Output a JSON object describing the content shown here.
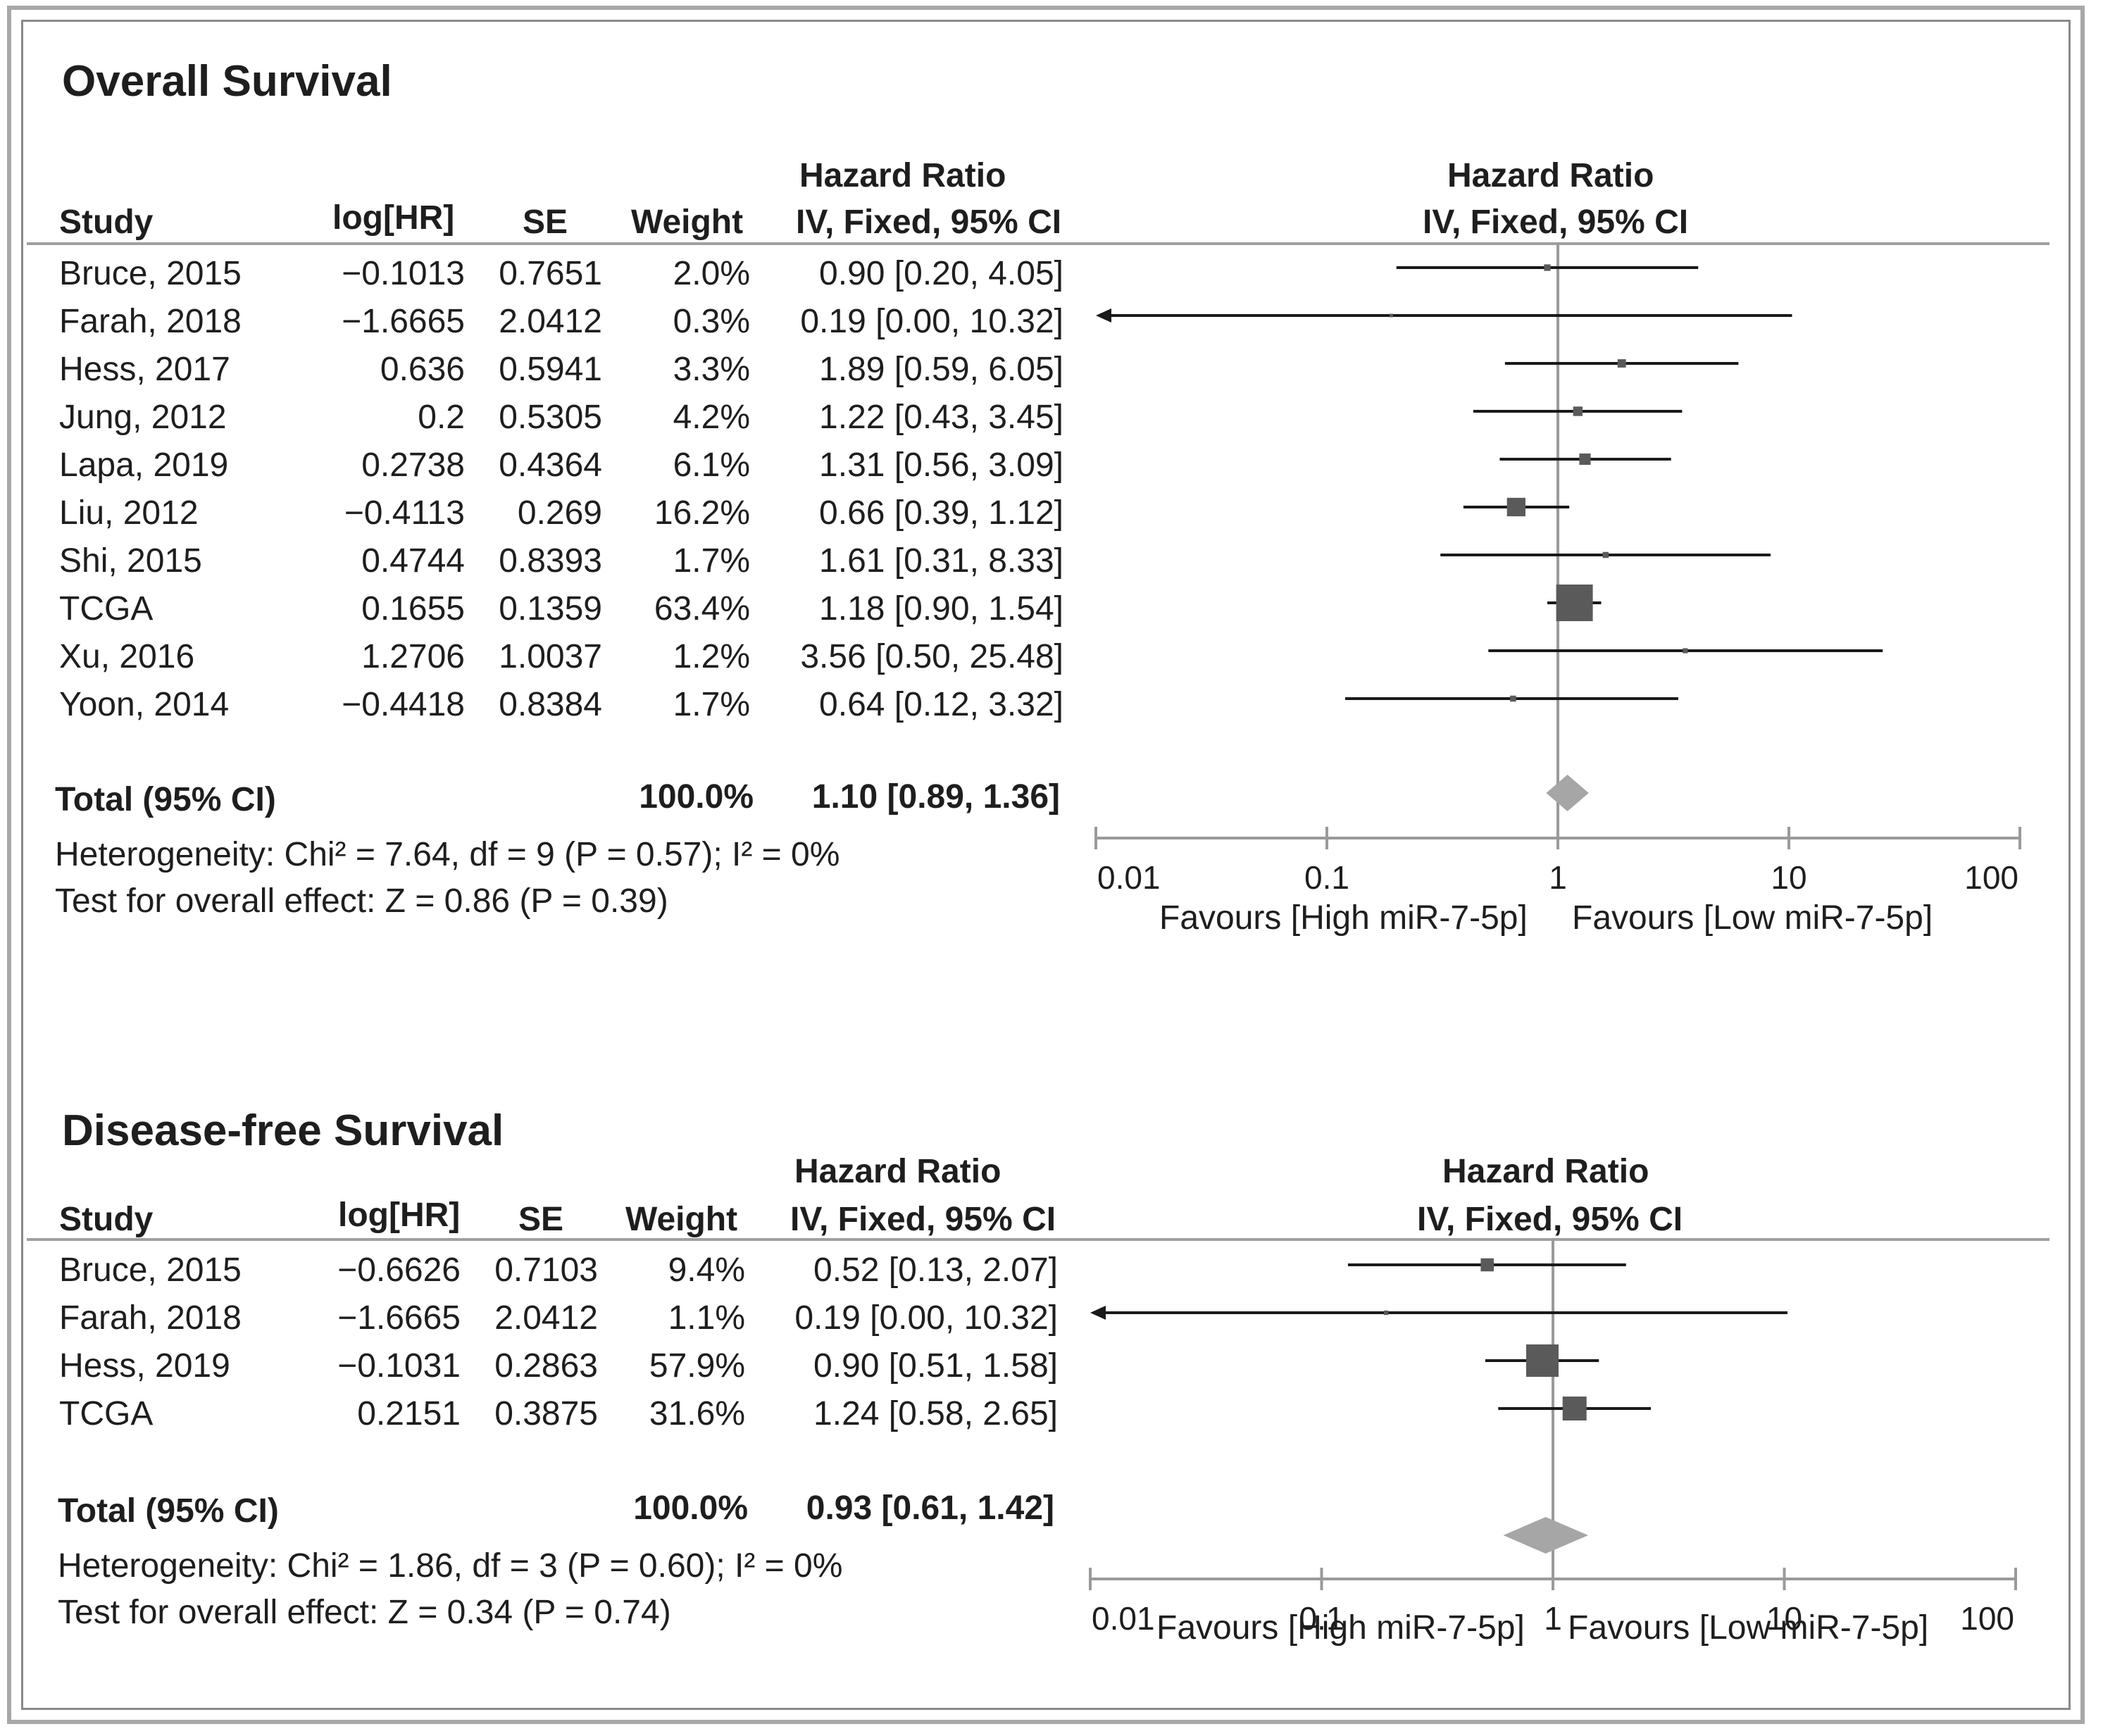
{
  "chart_data": [
    {
      "type": "forest",
      "title": "Overall Survival",
      "columns": {
        "study": "Study",
        "loghr": "log[HR]",
        "se": "SE",
        "weight": "Weight",
        "hr_top": "Hazard Ratio",
        "hr_bottom": "IV, Fixed, 95% CI",
        "plot_top": "Hazard Ratio",
        "plot_bottom": "IV, Fixed, 95% CI"
      },
      "studies": [
        {
          "study": "Bruce, 2015",
          "loghr": "−0.1013",
          "se": "0.7651",
          "weight": "2.0%",
          "ci_text": "0.90 [0.20, 4.05]",
          "hr": 0.9,
          "lo": 0.2,
          "hi": 4.05,
          "w": 2.0
        },
        {
          "study": "Farah, 2018",
          "loghr": "−1.6665",
          "se": "2.0412",
          "weight": "0.3%",
          "ci_text": "0.19 [0.00, 10.32]",
          "hr": 0.19,
          "lo": 0.0,
          "hi": 10.32,
          "w": 0.3
        },
        {
          "study": "Hess, 2017",
          "loghr": "0.636",
          "se": "0.5941",
          "weight": "3.3%",
          "ci_text": "1.89 [0.59, 6.05]",
          "hr": 1.89,
          "lo": 0.59,
          "hi": 6.05,
          "w": 3.3
        },
        {
          "study": "Jung, 2012",
          "loghr": "0.2",
          "se": "0.5305",
          "weight": "4.2%",
          "ci_text": "1.22 [0.43, 3.45]",
          "hr": 1.22,
          "lo": 0.43,
          "hi": 3.45,
          "w": 4.2
        },
        {
          "study": "Lapa, 2019",
          "loghr": "0.2738",
          "se": "0.4364",
          "weight": "6.1%",
          "ci_text": "1.31 [0.56, 3.09]",
          "hr": 1.31,
          "lo": 0.56,
          "hi": 3.09,
          "w": 6.1
        },
        {
          "study": "Liu, 2012",
          "loghr": "−0.4113",
          "se": "0.269",
          "weight": "16.2%",
          "ci_text": "0.66 [0.39, 1.12]",
          "hr": 0.66,
          "lo": 0.39,
          "hi": 1.12,
          "w": 16.2
        },
        {
          "study": "Shi, 2015",
          "loghr": "0.4744",
          "se": "0.8393",
          "weight": "1.7%",
          "ci_text": "1.61 [0.31, 8.33]",
          "hr": 1.61,
          "lo": 0.31,
          "hi": 8.33,
          "w": 1.7
        },
        {
          "study": "TCGA",
          "loghr": "0.1655",
          "se": "0.1359",
          "weight": "63.4%",
          "ci_text": "1.18 [0.90, 1.54]",
          "hr": 1.18,
          "lo": 0.9,
          "hi": 1.54,
          "w": 63.4
        },
        {
          "study": "Xu, 2016",
          "loghr": "1.2706",
          "se": "1.0037",
          "weight": "1.2%",
          "ci_text": "3.56 [0.50, 25.48]",
          "hr": 3.56,
          "lo": 0.5,
          "hi": 25.48,
          "w": 1.2
        },
        {
          "study": "Yoon, 2014",
          "loghr": "−0.4418",
          "se": "0.8384",
          "weight": "1.7%",
          "ci_text": "0.64 [0.12, 3.32]",
          "hr": 0.64,
          "lo": 0.12,
          "hi": 3.32,
          "w": 1.7
        }
      ],
      "total": {
        "label": "Total (95% CI)",
        "weight": "100.0%",
        "ci_text": "1.10 [0.89, 1.36]",
        "hr": 1.1,
        "lo": 0.89,
        "hi": 1.36
      },
      "heterogeneity": "Heterogeneity: Chi² = 7.64, df = 9 (P = 0.57); I² = 0%",
      "overall_effect": "Test for overall effect: Z = 0.86 (P = 0.39)",
      "x_axis": {
        "scale": "log",
        "range": [
          0.01,
          100
        ],
        "ticks": [
          0.01,
          0.1,
          1,
          10,
          100
        ],
        "tick_labels": [
          "0.01",
          "0.1",
          "1",
          "10",
          "100"
        ]
      },
      "favours_left": "Favours [High miR-7-5p]",
      "favours_right": "Favours [Low miR-7-5p]"
    },
    {
      "type": "forest",
      "title": "Disease-free Survival",
      "columns": {
        "study": "Study",
        "loghr": "log[HR]",
        "se": "SE",
        "weight": "Weight",
        "hr_top": "Hazard Ratio",
        "hr_bottom": "IV, Fixed, 95% CI",
        "plot_top": "Hazard Ratio",
        "plot_bottom": "IV, Fixed, 95% CI"
      },
      "studies": [
        {
          "study": "Bruce, 2015",
          "loghr": "−0.6626",
          "se": "0.7103",
          "weight": "9.4%",
          "ci_text": "0.52 [0.13, 2.07]",
          "hr": 0.52,
          "lo": 0.13,
          "hi": 2.07,
          "w": 9.4
        },
        {
          "study": "Farah, 2018",
          "loghr": "−1.6665",
          "se": "2.0412",
          "weight": "1.1%",
          "ci_text": "0.19 [0.00, 10.32]",
          "hr": 0.19,
          "lo": 0.0,
          "hi": 10.32,
          "w": 1.1
        },
        {
          "study": "Hess, 2019",
          "loghr": "−0.1031",
          "se": "0.2863",
          "weight": "57.9%",
          "ci_text": "0.90 [0.51, 1.58]",
          "hr": 0.9,
          "lo": 0.51,
          "hi": 1.58,
          "w": 57.9
        },
        {
          "study": "TCGA",
          "loghr": "0.2151",
          "se": "0.3875",
          "weight": "31.6%",
          "ci_text": "1.24 [0.58, 2.65]",
          "hr": 1.24,
          "lo": 0.58,
          "hi": 2.65,
          "w": 31.6
        }
      ],
      "total": {
        "label": "Total (95% CI)",
        "weight": "100.0%",
        "ci_text": "0.93 [0.61, 1.42]",
        "hr": 0.93,
        "lo": 0.61,
        "hi": 1.42
      },
      "heterogeneity": "Heterogeneity: Chi² = 1.86, df = 3 (P = 0.60); I² = 0%",
      "overall_effect": "Test for overall effect: Z = 0.34 (P = 0.74)",
      "x_axis": {
        "scale": "log",
        "range": [
          0.01,
          100
        ],
        "ticks": [
          0.01,
          0.1,
          1,
          10,
          100
        ],
        "tick_labels": [
          "0.01",
          "0.1",
          "1",
          "10",
          "100"
        ]
      },
      "favours_left": "Favours [High miR-7-5p]",
      "favours_right": "Favours [Low miR-7-5p]"
    }
  ],
  "colors": {
    "square": "#5a5a5a",
    "diamond": "#a6a6a6",
    "line": "#1a1a1a",
    "axis": "#9a9a9a",
    "rule": "#a0a0a0",
    "frame": "#a8a8a8"
  }
}
